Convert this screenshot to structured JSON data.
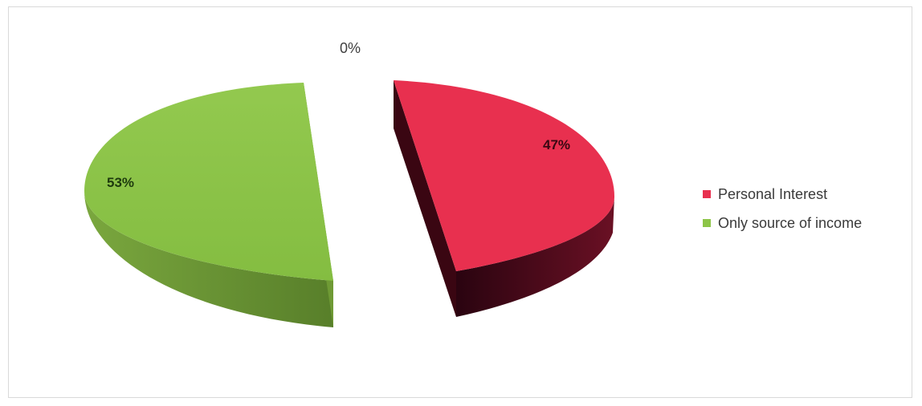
{
  "chart_data": {
    "type": "pie",
    "style": "3d-exploded",
    "categories": [
      "Personal Interest",
      "Only source of income"
    ],
    "values": [
      47,
      53
    ],
    "labels": [
      "47%",
      "53%"
    ],
    "extra_label": "0%",
    "colors": {
      "Personal Interest": "#e8304f",
      "Only source of income": "#8dc548"
    },
    "side_colors": {
      "Personal Interest": "#5a0e20",
      "Only source of income": "#5f8a2c"
    },
    "legend_position": "right"
  }
}
